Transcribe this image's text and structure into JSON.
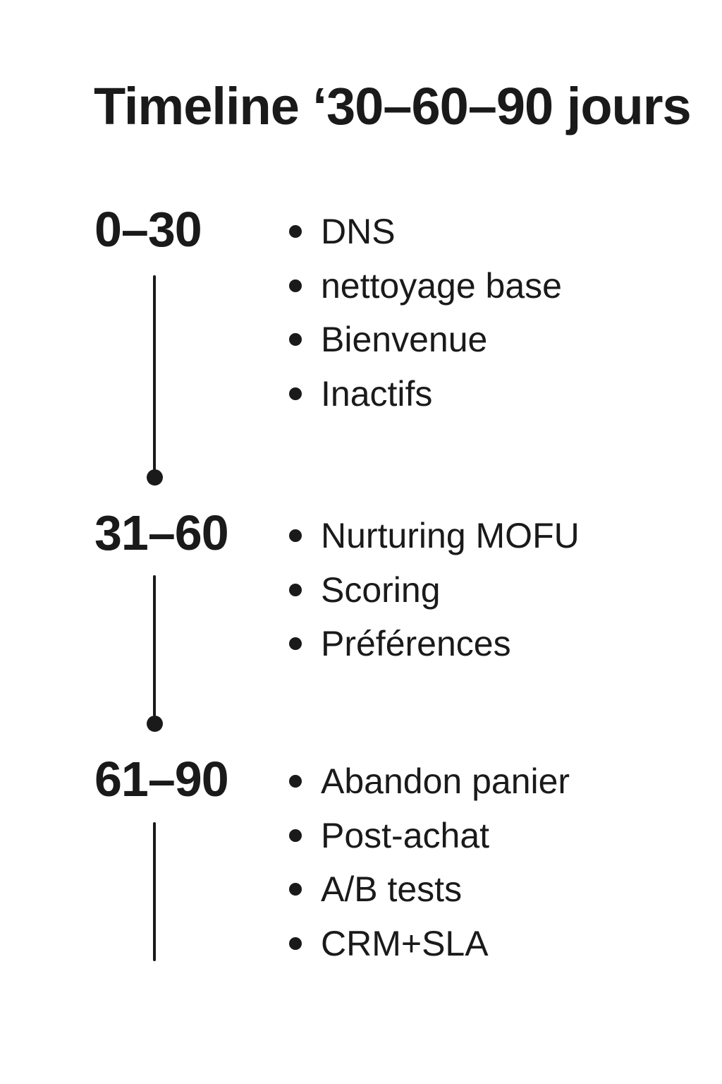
{
  "title": "Timeline ‘30–60–90 jours",
  "colors": {
    "text": "#1a1a1a",
    "background": "#ffffff"
  },
  "timeline": {
    "phases": [
      {
        "range": "0–30",
        "items": [
          "DNS",
          "nettoyage base",
          "Bienvenue",
          "Inactifs"
        ],
        "has_terminal_dot": true
      },
      {
        "range": "31–60",
        "items": [
          "Nurturing MOFU",
          "Scoring",
          "Préférences"
        ],
        "has_terminal_dot": true
      },
      {
        "range": "61–90",
        "items": [
          "Abandon panier",
          "Post-achat",
          "A/B tests",
          "CRM+SLA"
        ],
        "has_terminal_dot": false
      }
    ]
  }
}
